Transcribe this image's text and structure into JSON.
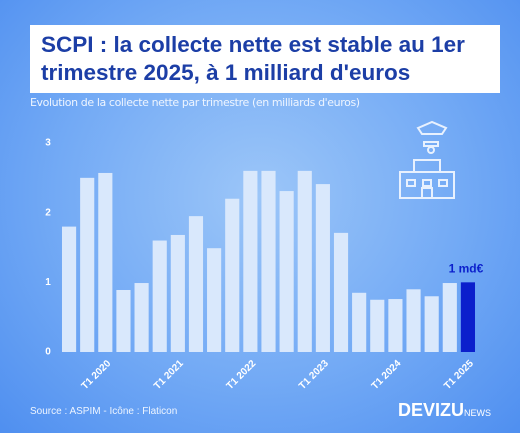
{
  "chart_data": {
    "type": "bar",
    "title": "SCPI : la collecte nette est stable au 1er trimestre 2025, à 1 milliard d'euros",
    "subtitle": "Evolution de la collecte nette par trimestre (en milliards d'euros)",
    "categories": [
      null,
      null,
      "T1 2020",
      null,
      null,
      null,
      "T1 2021",
      null,
      null,
      null,
      "T1 2022",
      null,
      null,
      null,
      "T1 2023",
      null,
      null,
      null,
      "T1 2024",
      null,
      null,
      null,
      "T1 2025"
    ],
    "values": [
      1.8,
      2.5,
      2.57,
      0.89,
      0.99,
      1.6,
      1.68,
      1.95,
      1.49,
      2.2,
      2.6,
      2.6,
      2.31,
      2.6,
      2.41,
      1.71,
      0.85,
      0.75,
      0.76,
      0.9,
      0.8,
      0.99,
      1.0
    ],
    "value_labels": [
      null,
      null,
      null,
      null,
      null,
      null,
      null,
      null,
      null,
      null,
      null,
      null,
      null,
      null,
      null,
      null,
      null,
      null,
      null,
      null,
      null,
      null,
      "1 md€"
    ],
    "colors": [
      "#d9e8fc",
      "#d9e8fc",
      "#d9e8fc",
      "#d9e8fc",
      "#d9e8fc",
      "#d9e8fc",
      "#d9e8fc",
      "#d9e8fc",
      "#d9e8fc",
      "#d9e8fc",
      "#d9e8fc",
      "#d9e8fc",
      "#d9e8fc",
      "#d9e8fc",
      "#d9e8fc",
      "#d9e8fc",
      "#d9e8fc",
      "#d9e8fc",
      "#d9e8fc",
      "#d9e8fc",
      "#d9e8fc",
      "#d9e8fc",
      "#0b1fcc"
    ],
    "ylim": [
      0,
      3
    ],
    "yticks": [
      0,
      1,
      2,
      3
    ],
    "grid": false
  },
  "footer": {
    "source": "Source : ASPIM - Icône : Flaticon",
    "brand": "DEVIZU",
    "brand_suffix": "NEWS"
  }
}
